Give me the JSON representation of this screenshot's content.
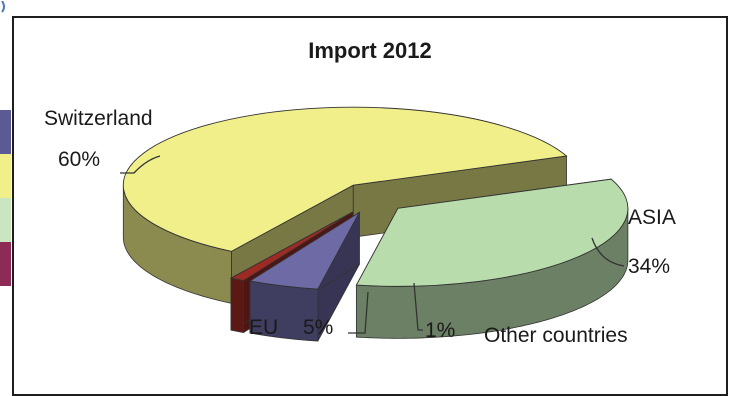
{
  "chart_data": {
    "type": "pie",
    "variant": "3d-exploded",
    "title": "Import 2012",
    "slices": [
      {
        "label": "Switzerland",
        "value": 60,
        "value_label": "60%",
        "color": "#f0ef8a"
      },
      {
        "label": "ASIA",
        "value": 34,
        "value_label": "34%",
        "color": "#b9dcac"
      },
      {
        "label": "EU",
        "value": 5,
        "value_label": "5%",
        "color": "#6d6aa6"
      },
      {
        "label": "Other countries",
        "value": 1,
        "value_label": "1%",
        "color": "#9e2a24"
      }
    ],
    "legend": "none"
  },
  "side_swatches": [
    "#5b5a94",
    "#f0ef8a",
    "#c9e6c0",
    "#8d2a55"
  ]
}
